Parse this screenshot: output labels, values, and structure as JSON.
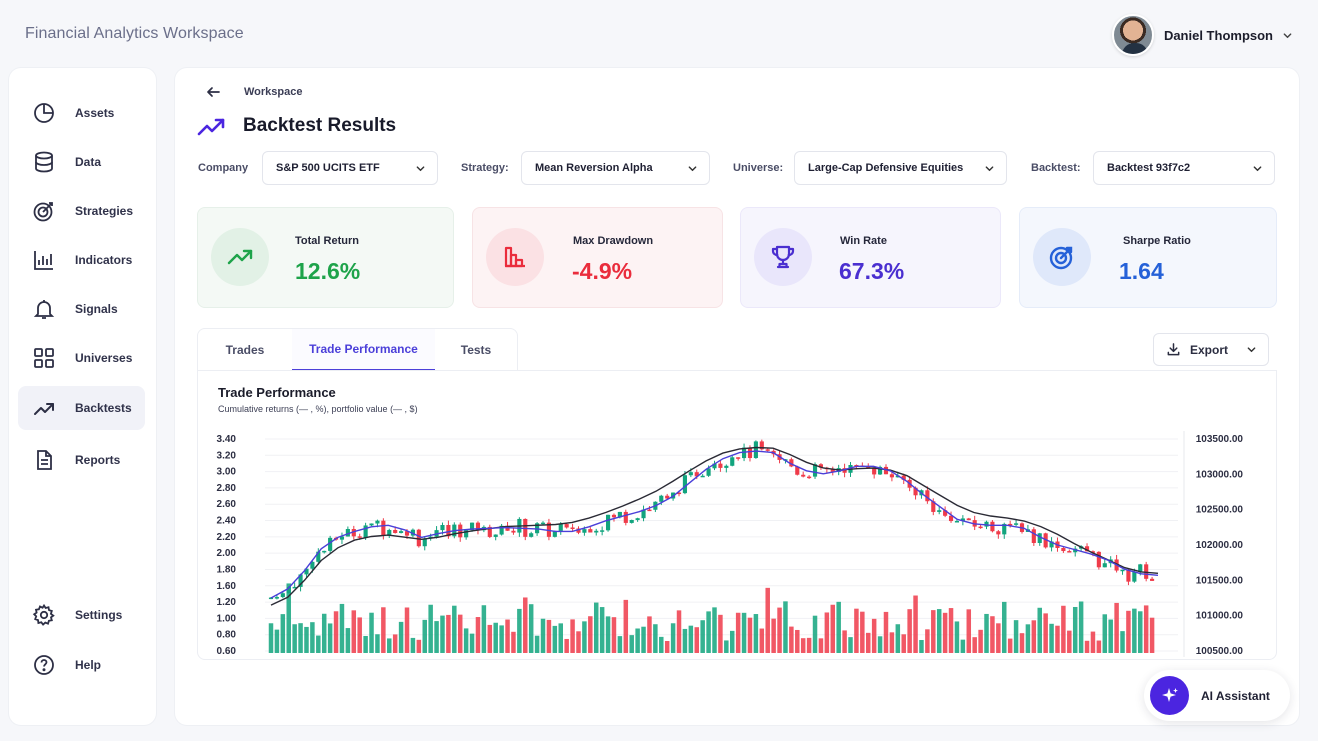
{
  "app": {
    "title": "Financial Analytics Workspace"
  },
  "user": {
    "name": "Daniel Thompson"
  },
  "sidebar": {
    "items": [
      {
        "label": "Assets",
        "icon": "pie-chart-icon"
      },
      {
        "label": "Data",
        "icon": "database-icon"
      },
      {
        "label": "Strategies",
        "icon": "target-icon"
      },
      {
        "label": "Indicators",
        "icon": "bar-chart-icon"
      },
      {
        "label": "Signals",
        "icon": "bell-icon"
      },
      {
        "label": "Universes",
        "icon": "grid-icon"
      },
      {
        "label": "Backtests",
        "icon": "trending-up-icon",
        "active": true
      },
      {
        "label": "Reports",
        "icon": "document-icon"
      }
    ],
    "bottom": [
      {
        "label": "Settings",
        "icon": "gear-icon"
      },
      {
        "label": "Help",
        "icon": "help-icon"
      }
    ]
  },
  "breadcrumb": {
    "label": "Workspace"
  },
  "page": {
    "title": "Backtest Results"
  },
  "filters": {
    "company": {
      "label": "Company",
      "value": "S&P 500 UCITS ETF"
    },
    "strategy": {
      "label": "Strategy:",
      "value": "Mean Reversion Alpha"
    },
    "universe": {
      "label": "Universe:",
      "value": "Large-Cap Defensive Equities"
    },
    "backtest": {
      "label": "Backtest:",
      "value": "Backtest 93f7c2"
    }
  },
  "kpis": [
    {
      "label": "Total Return",
      "value": "12.6%",
      "color": "#1ea34a",
      "bg": "#f4f9f5",
      "icon": "trending-up-icon"
    },
    {
      "label": "Max Drawdown",
      "value": "-4.9%",
      "color": "#ea2c3c",
      "bg": "#fdf3f4",
      "icon": "bar-chart-down-icon"
    },
    {
      "label": "Win Rate",
      "value": "67.3%",
      "color": "#4a2fd0",
      "bg": "#f6f5fd",
      "icon": "trophy-icon"
    },
    {
      "label": "Sharpe Ratio",
      "value": "1.64",
      "color": "#2561d8",
      "bg": "#f4f7fd",
      "icon": "target-icon"
    }
  ],
  "tabs": [
    {
      "label": "Trades"
    },
    {
      "label": "Trade Performance",
      "active": true
    },
    {
      "label": "Tests"
    }
  ],
  "export": {
    "label": "Export"
  },
  "assistant": {
    "label": "AI Assistant"
  },
  "chart_data": {
    "type": "line",
    "title": "Trade Performance",
    "subtitle": "Cumulative returns (— , %), portfolio value (— , $)",
    "left_axis": {
      "ticks": [
        "3.40",
        "3.20",
        "3.00",
        "2.80",
        "2.60",
        "2.40",
        "2.20",
        "2.00",
        "1.80",
        "1.60",
        "1.20",
        "1.00",
        "0.80",
        "0.60"
      ],
      "ylim": [
        0.6,
        3.4
      ]
    },
    "right_axis": {
      "ticks": [
        "103500.00",
        "103000.00",
        "102500.00",
        "102000.00",
        "101500.00",
        "101000.00",
        "100500.00"
      ],
      "ylim": [
        100500,
        103500
      ]
    },
    "series": [
      {
        "name": "Cumulative returns",
        "color": "#4a3fd9",
        "values": [
          1.3,
          1.42,
          1.66,
          1.95,
          2.1,
          2.18,
          2.24,
          2.26,
          2.2,
          2.1,
          2.15,
          2.19,
          2.21,
          2.22,
          2.23,
          2.22,
          2.21,
          2.18,
          2.18,
          2.24,
          2.32,
          2.38,
          2.44,
          2.52,
          2.64,
          2.82,
          3.0,
          3.14,
          3.22,
          3.24,
          3.22,
          3.08,
          2.98,
          2.94,
          2.98,
          3.04,
          3.04,
          2.98,
          2.84,
          2.66,
          2.5,
          2.34,
          2.28,
          2.26,
          2.26,
          2.22,
          2.1,
          2.0,
          1.94,
          1.88,
          1.8,
          1.68,
          1.62,
          1.6
        ]
      },
      {
        "name": "Portfolio value",
        "color": "#2a2a35",
        "values": [
          101150,
          101260,
          101500,
          101780,
          101960,
          102070,
          102120,
          102140,
          102110,
          102080,
          102110,
          102160,
          102200,
          102230,
          102260,
          102270,
          102280,
          102290,
          102320,
          102380,
          102460,
          102550,
          102650,
          102760,
          102900,
          103050,
          103190,
          103300,
          103360,
          103380,
          103370,
          103280,
          103170,
          103090,
          103060,
          103080,
          103090,
          103060,
          102980,
          102840,
          102700,
          102560,
          102460,
          102410,
          102380,
          102340,
          102260,
          102150,
          102020,
          101900,
          101790,
          101680,
          101620,
          101600
        ]
      }
    ],
    "candles": {
      "count": 150,
      "colors": {
        "up": "#12a47e",
        "down": "#ef3b4a"
      }
    },
    "volume": {
      "max_label": "",
      "colors": {
        "up": "#12a47e",
        "down": "#ef3b4a"
      }
    },
    "grid": "horizontal"
  }
}
